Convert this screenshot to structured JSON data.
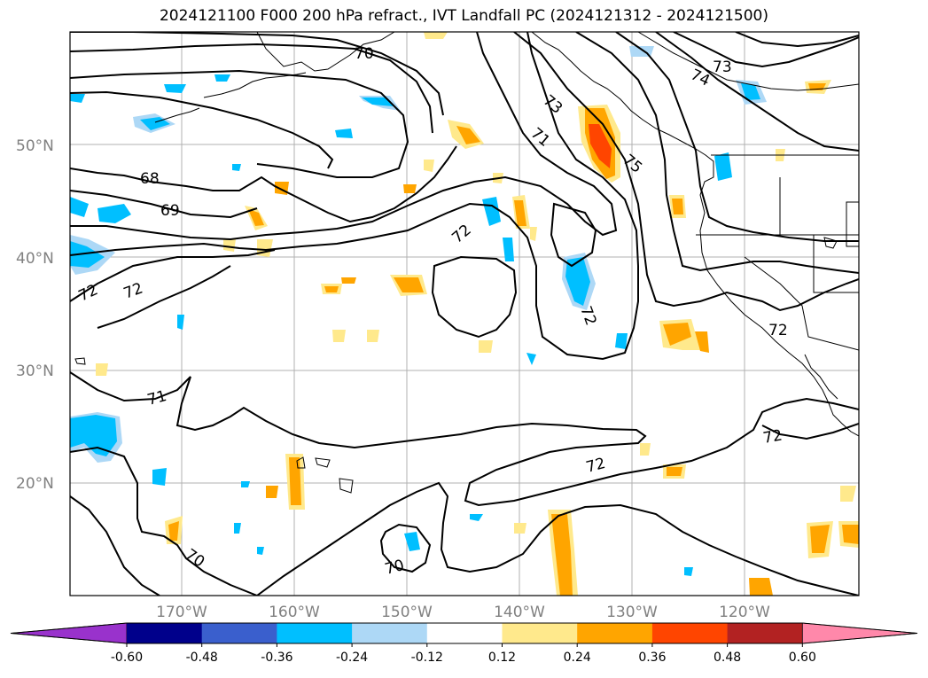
{
  "title": "2024121100 F000 200 hPa refract., IVT Landfall PC (2024121312 - 2024121500)",
  "lat_labels": [
    "50°N",
    "40°N",
    "30°N",
    "20°N"
  ],
  "lon_labels": [
    "170°W",
    "160°W",
    "150°W",
    "140°W",
    "130°W",
    "120°W"
  ],
  "contour_labels": [
    "68",
    "69",
    "70",
    "71",
    "72",
    "73",
    "74",
    "75"
  ],
  "colorbar": {
    "ticks": [
      "-0.60",
      "-0.48",
      "-0.36",
      "-0.24",
      "-0.12",
      "0.12",
      "0.24",
      "0.36",
      "0.48",
      "0.60"
    ],
    "colors": [
      "#9932cc",
      "#00008b",
      "#3a5fcd",
      "#00bfff",
      "#add8f6",
      "#ffffff",
      "#ffe98c",
      "#ffa500",
      "#ff4500",
      "#b22222",
      "#ff88aa"
    ]
  }
}
